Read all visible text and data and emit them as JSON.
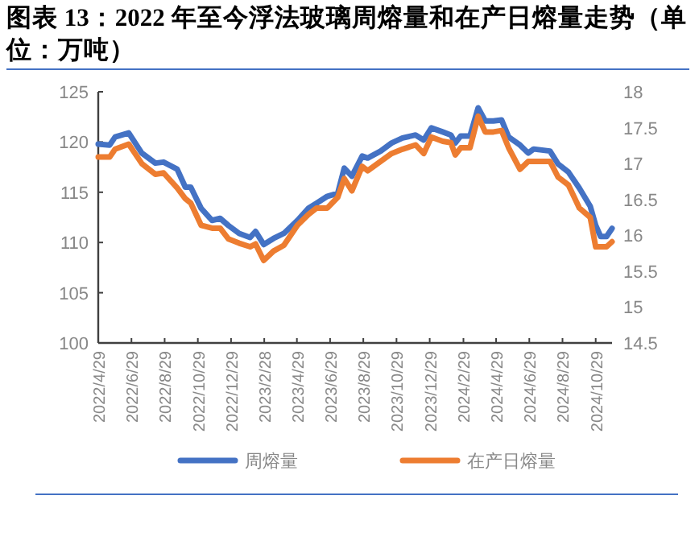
{
  "chart_data": {
    "type": "line",
    "title": "图表 13：2022 年至今浮法玻璃周熔量和在产日熔量走势（单位：万吨）",
    "x": [
      "2022-04-29",
      "2022-05-20",
      "2022-05-30",
      "2022-06-24",
      "2022-07-18",
      "2022-08-12",
      "2022-08-27",
      "2022-09-21",
      "2022-10-06",
      "2022-10-16",
      "2022-11-04",
      "2022-11-24",
      "2022-12-09",
      "2022-12-24",
      "2023-01-13",
      "2023-02-02",
      "2023-02-12",
      "2023-02-27",
      "2023-03-17",
      "2023-04-05",
      "2023-04-30",
      "2023-05-20",
      "2023-06-04",
      "2023-06-24",
      "2023-07-13",
      "2023-07-25",
      "2023-08-08",
      "2023-08-27",
      "2023-09-06",
      "2023-09-30",
      "2023-10-20",
      "2023-11-09",
      "2023-12-03",
      "2023-12-18",
      "2024-01-01",
      "2024-01-22",
      "2024-02-06",
      "2024-02-14",
      "2024-02-24",
      "2024-03-12",
      "2024-03-27",
      "2024-04-09",
      "2024-04-24",
      "2024-05-09",
      "2024-05-22",
      "2024-06-12",
      "2024-06-27",
      "2024-07-07",
      "2024-08-06",
      "2024-08-21",
      "2024-09-09",
      "2024-09-29",
      "2024-10-19",
      "2024-10-29",
      "2024-11-07",
      "2024-11-18",
      "2024-11-28"
    ],
    "xlim": [
      "2022-04-29",
      "2024-11-28"
    ],
    "xticks": [
      {
        "value": "2022-04-29",
        "label": "2022/4/29"
      },
      {
        "value": "2022-06-29",
        "label": "2022/6/29"
      },
      {
        "value": "2022-08-29",
        "label": "2022/8/29"
      },
      {
        "value": "2022-10-29",
        "label": "2022/10/29"
      },
      {
        "value": "2022-12-29",
        "label": "2022/12/29"
      },
      {
        "value": "2023-02-28",
        "label": "2023/2/28"
      },
      {
        "value": "2023-04-29",
        "label": "2023/4/29"
      },
      {
        "value": "2023-06-29",
        "label": "2023/6/29"
      },
      {
        "value": "2023-08-29",
        "label": "2023/8/29"
      },
      {
        "value": "2023-10-29",
        "label": "2023/10/29"
      },
      {
        "value": "2023-12-29",
        "label": "2023/12/29"
      },
      {
        "value": "2024-02-29",
        "label": "2024/2/29"
      },
      {
        "value": "2024-04-29",
        "label": "2024/4/29"
      },
      {
        "value": "2024-06-29",
        "label": "2024/6/29"
      },
      {
        "value": "2024-08-29",
        "label": "2024/8/29"
      },
      {
        "value": "2024-10-29",
        "label": "2024/10/29"
      }
    ],
    "ylim": [
      100,
      125
    ],
    "yticks": [
      100,
      105,
      110,
      115,
      120,
      125
    ],
    "y2lim": [
      14.5,
      18
    ],
    "y2ticks": [
      14.5,
      15,
      15.5,
      16,
      16.5,
      17,
      17.5,
      18
    ],
    "legend": "bottom",
    "series": [
      {
        "name": "周熔量",
        "color": "#4472c4",
        "values": [
          119.8,
          119.7,
          120.5,
          120.9,
          118.9,
          117.9,
          118.0,
          117.3,
          115.5,
          115.5,
          113.4,
          112.2,
          112.4,
          111.7,
          110.9,
          110.5,
          111.1,
          109.8,
          110.4,
          110.9,
          112.2,
          113.4,
          113.9,
          114.6,
          114.9,
          117.4,
          116.6,
          118.6,
          118.4,
          119.1,
          119.9,
          120.4,
          120.7,
          120.2,
          121.4,
          121.0,
          120.7,
          119.9,
          120.6,
          120.6,
          123.4,
          122.1,
          122.1,
          122.2,
          120.5,
          119.7,
          118.9,
          119.3,
          119.1,
          117.8,
          117.0,
          115.4,
          113.6,
          111.7,
          110.6,
          110.6,
          111.4
        ]
      },
      {
        "name": "在产日熔量",
        "color": "#ed7d31",
        "axis": "y2",
        "values": [
          17.09,
          17.09,
          17.2,
          17.27,
          17.0,
          16.85,
          16.87,
          16.66,
          16.51,
          16.45,
          16.14,
          16.1,
          16.1,
          15.95,
          15.89,
          15.84,
          15.88,
          15.65,
          15.78,
          15.86,
          16.14,
          16.29,
          16.38,
          16.38,
          16.53,
          16.79,
          16.62,
          16.96,
          16.9,
          17.03,
          17.14,
          17.2,
          17.26,
          17.14,
          17.37,
          17.31,
          17.29,
          17.12,
          17.22,
          17.22,
          17.66,
          17.44,
          17.44,
          17.46,
          17.22,
          16.92,
          17.03,
          17.03,
          17.03,
          16.81,
          16.7,
          16.38,
          16.25,
          15.84,
          15.84,
          15.84,
          15.91
        ]
      }
    ]
  }
}
